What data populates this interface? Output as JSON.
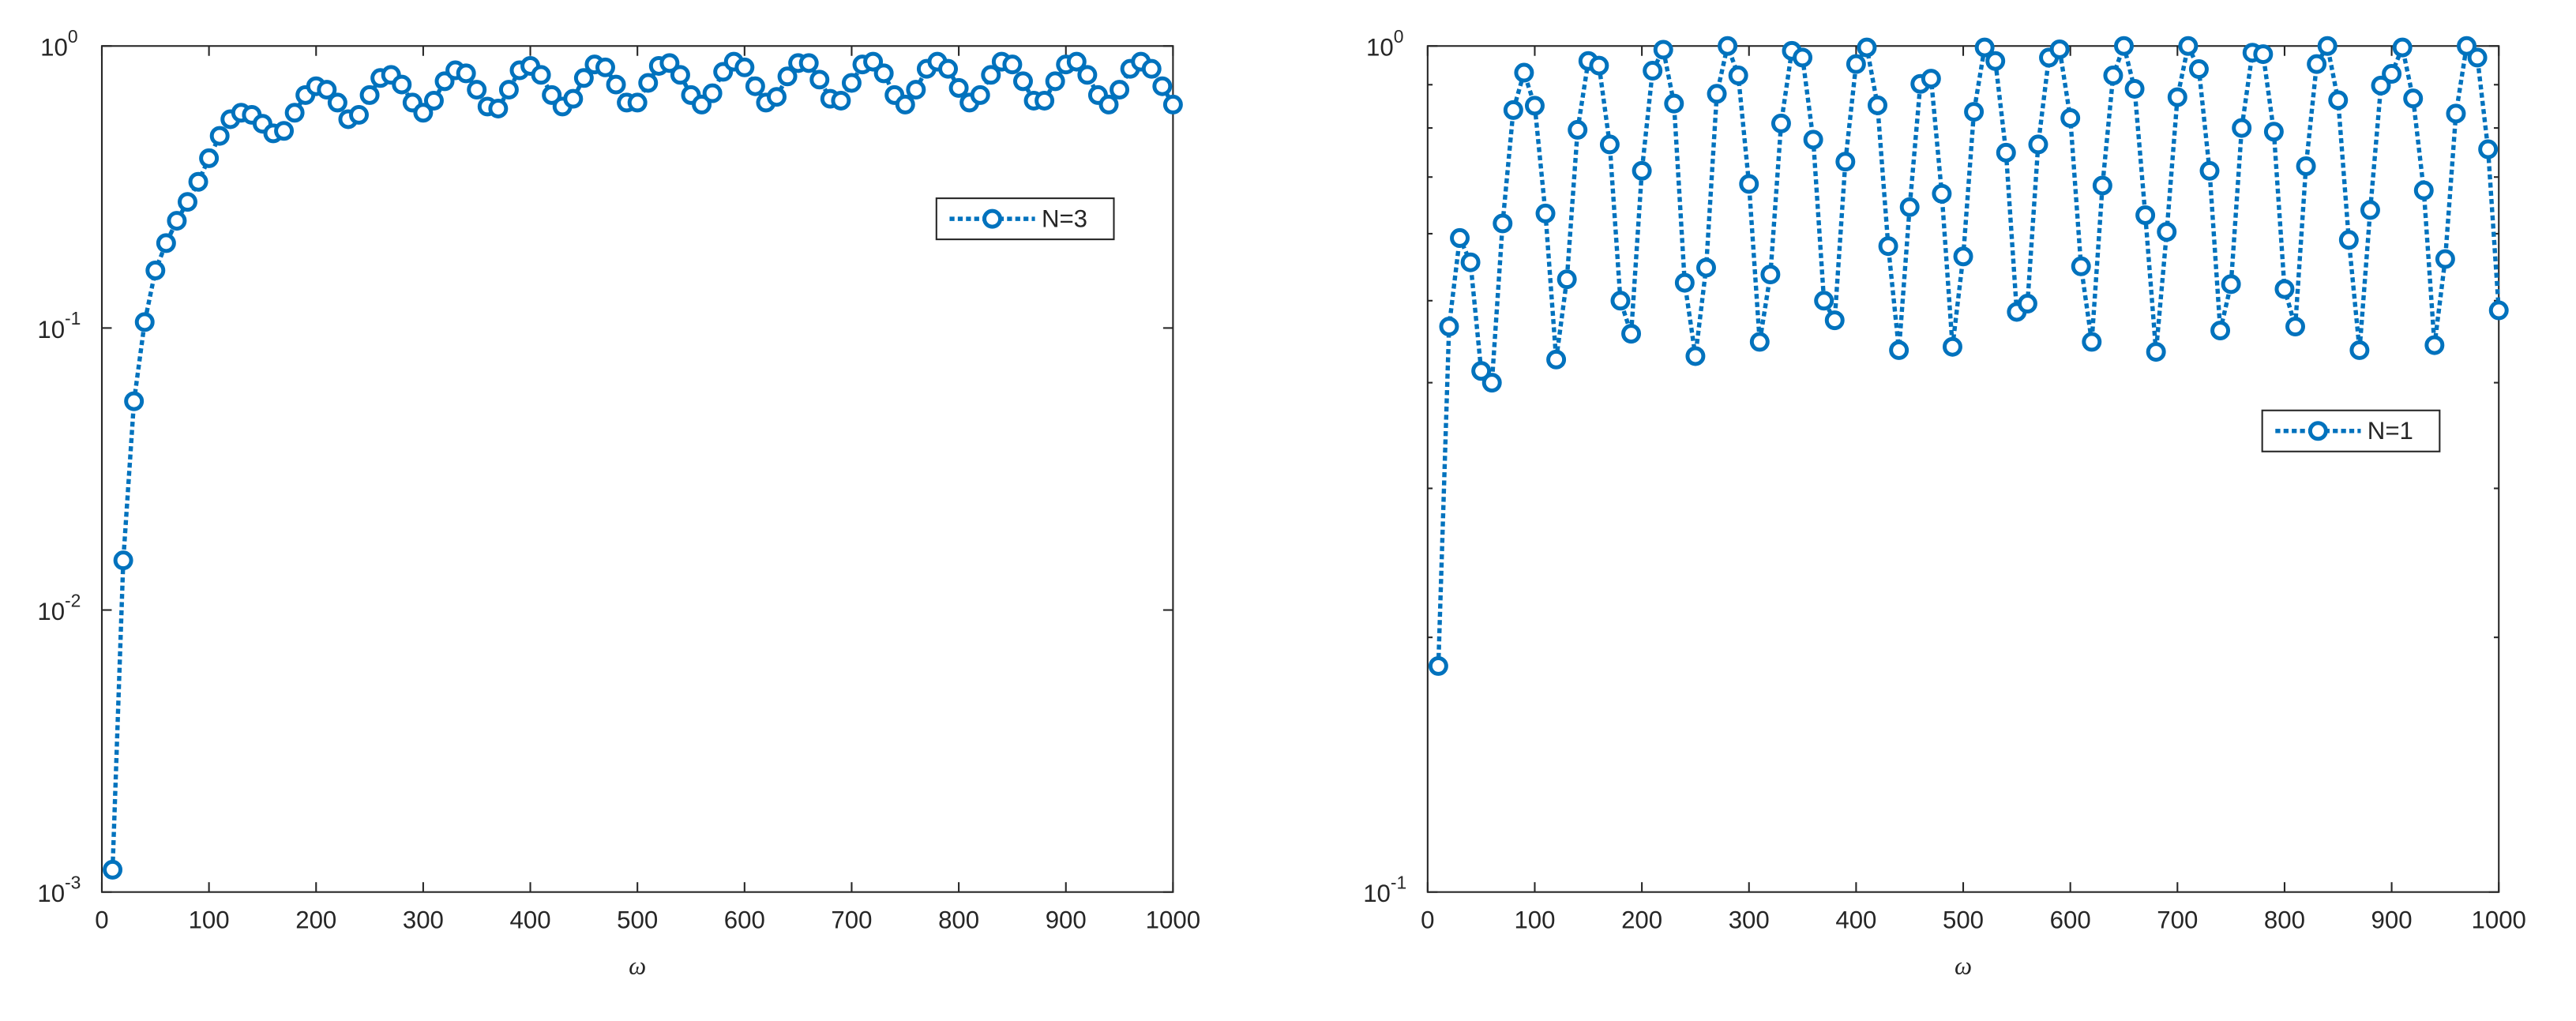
{
  "chart_data": [
    {
      "type": "line",
      "log_y": true,
      "xlabel": "ω",
      "x": [
        10,
        20,
        30,
        40,
        50,
        60,
        70,
        80,
        90,
        100,
        110,
        120,
        130,
        140,
        150,
        160,
        170,
        180,
        190,
        200,
        210,
        220,
        230,
        240,
        250,
        260,
        270,
        280,
        290,
        300,
        310,
        320,
        330,
        340,
        350,
        360,
        370,
        380,
        390,
        400,
        410,
        420,
        430,
        440,
        450,
        460,
        470,
        480,
        490,
        500,
        510,
        520,
        530,
        540,
        550,
        560,
        570,
        580,
        590,
        600,
        610,
        620,
        630,
        640,
        650,
        660,
        670,
        680,
        690,
        700,
        710,
        720,
        730,
        740,
        750,
        760,
        770,
        780,
        790,
        800,
        810,
        820,
        830,
        840,
        850,
        860,
        870,
        880,
        890,
        900,
        910,
        920,
        930,
        940,
        950,
        960,
        970,
        980,
        990,
        1000
      ],
      "series": [
        {
          "name": "N=3",
          "color": "#0072bd",
          "values": [
            0.0012,
            0.015,
            0.055,
            0.105,
            0.16,
            0.2,
            0.24,
            0.28,
            0.33,
            0.4,
            0.48,
            0.55,
            0.58,
            0.57,
            0.53,
            0.49,
            0.5,
            0.58,
            0.67,
            0.72,
            0.7,
            0.63,
            0.55,
            0.57,
            0.67,
            0.77,
            0.79,
            0.73,
            0.63,
            0.58,
            0.64,
            0.75,
            0.82,
            0.8,
            0.7,
            0.61,
            0.6,
            0.7,
            0.82,
            0.85,
            0.79,
            0.67,
            0.61,
            0.65,
            0.77,
            0.86,
            0.84,
            0.73,
            0.63,
            0.63,
            0.74,
            0.85,
            0.87,
            0.79,
            0.67,
            0.62,
            0.68,
            0.81,
            0.88,
            0.84,
            0.72,
            0.63,
            0.66,
            0.78,
            0.87,
            0.87,
            0.76,
            0.65,
            0.64,
            0.74,
            0.86,
            0.88,
            0.8,
            0.67,
            0.62,
            0.7,
            0.83,
            0.88,
            0.83,
            0.71,
            0.63,
            0.67,
            0.79,
            0.88,
            0.86,
            0.75,
            0.64,
            0.64,
            0.75,
            0.86,
            0.88,
            0.79,
            0.67,
            0.62,
            0.7,
            0.83,
            0.88,
            0.83,
            0.72,
            0.62
          ]
        }
      ],
      "xlim": [
        0,
        1000
      ],
      "xticks": [
        0,
        100,
        200,
        300,
        400,
        500,
        600,
        700,
        800,
        900,
        1000
      ],
      "ylim": [
        0.001,
        1
      ],
      "yticks": [
        {
          "value": 0.001,
          "label": "10",
          "exponent": "-3"
        },
        {
          "value": 0.01,
          "label": "10",
          "exponent": "-2"
        },
        {
          "value": 0.1,
          "label": "10",
          "exponent": "-1"
        },
        {
          "value": 1,
          "label": "10",
          "exponent": "0"
        }
      ],
      "legend_location": "upper-east"
    },
    {
      "type": "line",
      "log_y": true,
      "xlabel": "ω",
      "x": [
        10,
        20,
        30,
        40,
        50,
        60,
        70,
        80,
        90,
        100,
        110,
        120,
        130,
        140,
        150,
        160,
        170,
        180,
        190,
        200,
        210,
        220,
        230,
        240,
        250,
        260,
        270,
        280,
        290,
        300,
        310,
        320,
        330,
        340,
        350,
        360,
        370,
        380,
        390,
        400,
        410,
        420,
        430,
        440,
        450,
        460,
        470,
        480,
        490,
        500,
        510,
        520,
        530,
        540,
        550,
        560,
        570,
        580,
        590,
        600,
        610,
        620,
        630,
        640,
        650,
        660,
        670,
        680,
        690,
        700,
        710,
        720,
        730,
        740,
        750,
        760,
        770,
        780,
        790,
        800,
        810,
        820,
        830,
        840,
        850,
        860,
        870,
        880,
        890,
        900,
        910,
        920,
        930,
        940,
        950,
        960,
        970,
        980,
        990,
        1000
      ],
      "series": [
        {
          "name": "N=1",
          "color": "#0072bd",
          "values": [
            0.185,
            0.466,
            0.593,
            0.555,
            0.413,
            0.4,
            0.617,
            0.84,
            0.93,
            0.85,
            0.634,
            0.426,
            0.53,
            0.796,
            0.96,
            0.948,
            0.765,
            0.5,
            0.457,
            0.712,
            0.935,
            0.99,
            0.855,
            0.525,
            0.43,
            0.547,
            0.878,
            1.0,
            0.923,
            0.687,
            0.447,
            0.537,
            0.81,
            0.987,
            0.969,
            0.775,
            0.5,
            0.474,
            0.73,
            0.952,
            0.996,
            0.851,
            0.58,
            0.437,
            0.645,
            0.902,
            0.915,
            0.669,
            0.441,
            0.564,
            0.836,
            0.996,
            0.96,
            0.748,
            0.485,
            0.496,
            0.765,
            0.969,
            0.991,
            0.822,
            0.549,
            0.447,
            0.684,
            0.923,
            1.0,
            0.89,
            0.631,
            0.435,
            0.603,
            0.87,
            1.0,
            0.939,
            0.712,
            0.461,
            0.523,
            0.8,
            0.982,
            0.978,
            0.792,
            0.516,
            0.466,
            0.721,
            0.952,
            1.0,
            0.863,
            0.59,
            0.437,
            0.64,
            0.898,
            0.927,
            0.996,
            0.867,
            0.675,
            0.443,
            0.56,
            0.832,
            1.0,
            0.969,
            0.755,
            0.487
          ]
        }
      ],
      "xlim": [
        0,
        1000
      ],
      "xticks": [
        0,
        100,
        200,
        300,
        400,
        500,
        600,
        700,
        800,
        900,
        1000
      ],
      "ylim": [
        0.1,
        1
      ],
      "yticks": [
        {
          "value": 0.1,
          "label": "10",
          "exponent": "-1"
        },
        {
          "value": 1,
          "label": "10",
          "exponent": "0"
        }
      ],
      "yminorticks": [
        0.2,
        0.3,
        0.4,
        0.5,
        0.6,
        0.7,
        0.8,
        0.9
      ],
      "legend_location": "east"
    }
  ]
}
